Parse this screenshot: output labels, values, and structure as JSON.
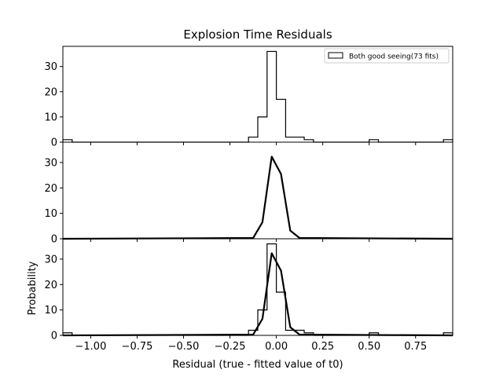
{
  "chart_data": {
    "type": "histogram",
    "title": "Explosion Time Residuals",
    "xlabel": "Residual (true - fitted value of t0)",
    "ylabel": "Probability",
    "xlim": [
      -1.15,
      0.95
    ],
    "x_ticks": [
      -1.0,
      -0.75,
      -0.5,
      -0.25,
      0.0,
      0.25,
      0.5,
      0.75
    ],
    "x_tick_labels": [
      "−1.00",
      "−0.75",
      "−0.50",
      "−0.25",
      "0.00",
      "0.25",
      "0.50",
      "0.75"
    ],
    "panels": [
      {
        "kind": "histogram",
        "ylim": [
          0,
          38
        ],
        "y_ticks": [
          0,
          10,
          20,
          30
        ],
        "bins": {
          "edges": [
            -1.15,
            -1.1,
            -0.15,
            -0.1,
            -0.05,
            0.0,
            0.05,
            0.1,
            0.15,
            0.2,
            0.5,
            0.55,
            0.9,
            0.95
          ],
          "counts": [
            1,
            0,
            2,
            10,
            36,
            17,
            2,
            2,
            1,
            0,
            1,
            0,
            1
          ]
        },
        "legend": {
          "label": "Both good seeing(73 fits)",
          "placement": "top-right"
        }
      },
      {
        "kind": "line",
        "ylim": [
          0,
          38
        ],
        "y_ticks": [
          0,
          10,
          20,
          30
        ],
        "x": [
          -1.15,
          -0.125,
          -0.075,
          -0.025,
          0.025,
          0.075,
          0.125,
          0.95
        ],
        "y": [
          0,
          0.3,
          6.5,
          32.3,
          25.5,
          3.2,
          0.3,
          0
        ]
      },
      {
        "kind": "histogram+line",
        "ylim": [
          0,
          38
        ],
        "y_ticks": [
          0,
          10,
          20,
          30
        ],
        "bins": {
          "edges": [
            -1.15,
            -1.1,
            -0.15,
            -0.1,
            -0.05,
            0.0,
            0.05,
            0.1,
            0.15,
            0.2,
            0.5,
            0.55,
            0.9,
            0.95
          ],
          "counts": [
            1,
            0,
            2,
            10,
            36,
            17,
            2,
            2,
            1,
            0,
            1,
            0,
            1
          ]
        },
        "x": [
          -1.15,
          -0.125,
          -0.075,
          -0.025,
          0.025,
          0.075,
          0.125,
          0.95
        ],
        "y": [
          0,
          0.3,
          6.5,
          32.3,
          25.5,
          3.2,
          0.3,
          0
        ]
      }
    ],
    "grid": false,
    "colors": {
      "line": "#000000",
      "background": "#ffffff"
    }
  }
}
